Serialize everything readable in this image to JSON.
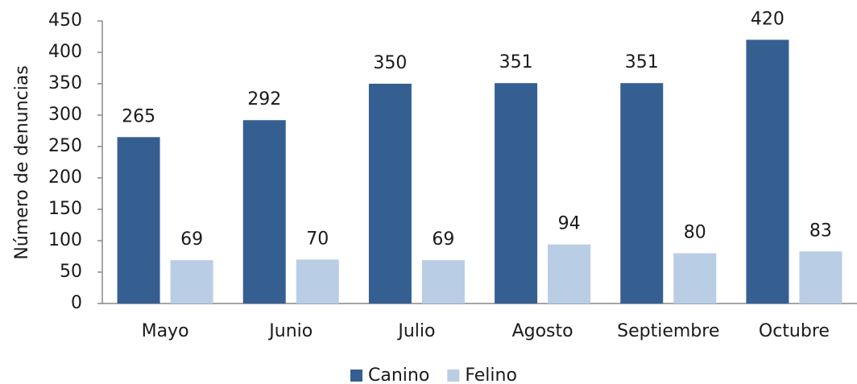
{
  "chart_data": {
    "type": "bar",
    "ylabel": "Número de denuncias",
    "categories": [
      "Mayo",
      "Junio",
      "Julio",
      "Agosto",
      "Septiembre",
      "Octubre"
    ],
    "series": [
      {
        "name": "Canino",
        "color": "#365f91",
        "values": [
          265,
          292,
          350,
          351,
          351,
          420
        ]
      },
      {
        "name": "Felino",
        "color": "#b9cde5",
        "values": [
          69,
          70,
          69,
          94,
          80,
          83
        ]
      }
    ],
    "ylim": [
      0,
      450
    ],
    "yticks": [
      0,
      50,
      100,
      150,
      200,
      250,
      300,
      350,
      400,
      450
    ],
    "grid": false,
    "legend": "bottom"
  }
}
